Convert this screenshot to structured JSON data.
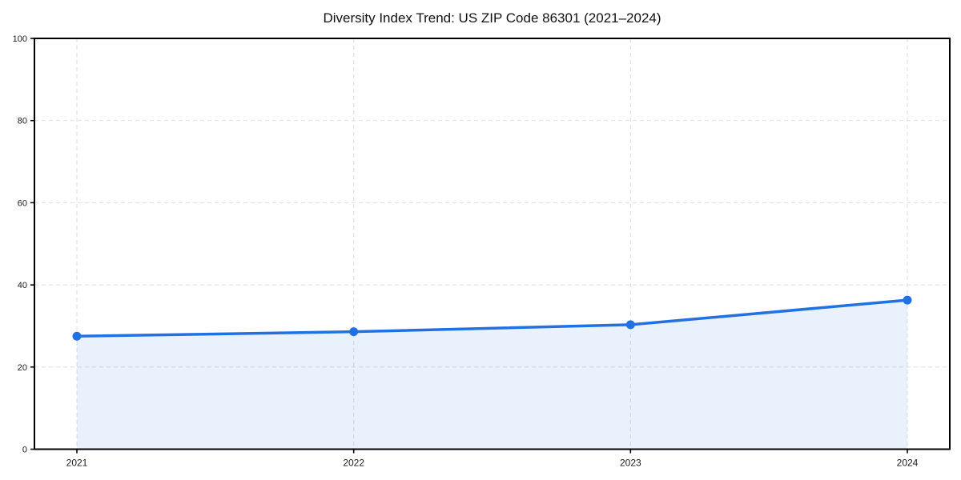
{
  "chart_data": {
    "type": "area",
    "title": "Diversity Index Trend: US ZIP Code 86301 (2021–2024)",
    "categories": [
      "2021",
      "2022",
      "2023",
      "2024"
    ],
    "series": [
      {
        "name": "Diversity Index",
        "values": [
          27.5,
          28.6,
          30.3,
          36.3
        ]
      }
    ],
    "xlabel": "",
    "ylabel": "",
    "ylim": [
      0,
      100
    ],
    "yticks": [
      0,
      20,
      40,
      60,
      80,
      100
    ],
    "grid": true,
    "grid_style": "dashed",
    "legend_position": "none",
    "colors": {
      "line": "#2271e3",
      "marker": "#2271e3",
      "area_fill": "rgba(34,113,227,0.10)",
      "grid": "#e3e3e3",
      "spine": "#000000",
      "tick_text": "#1a1a1a",
      "background": "#ffffff"
    }
  }
}
